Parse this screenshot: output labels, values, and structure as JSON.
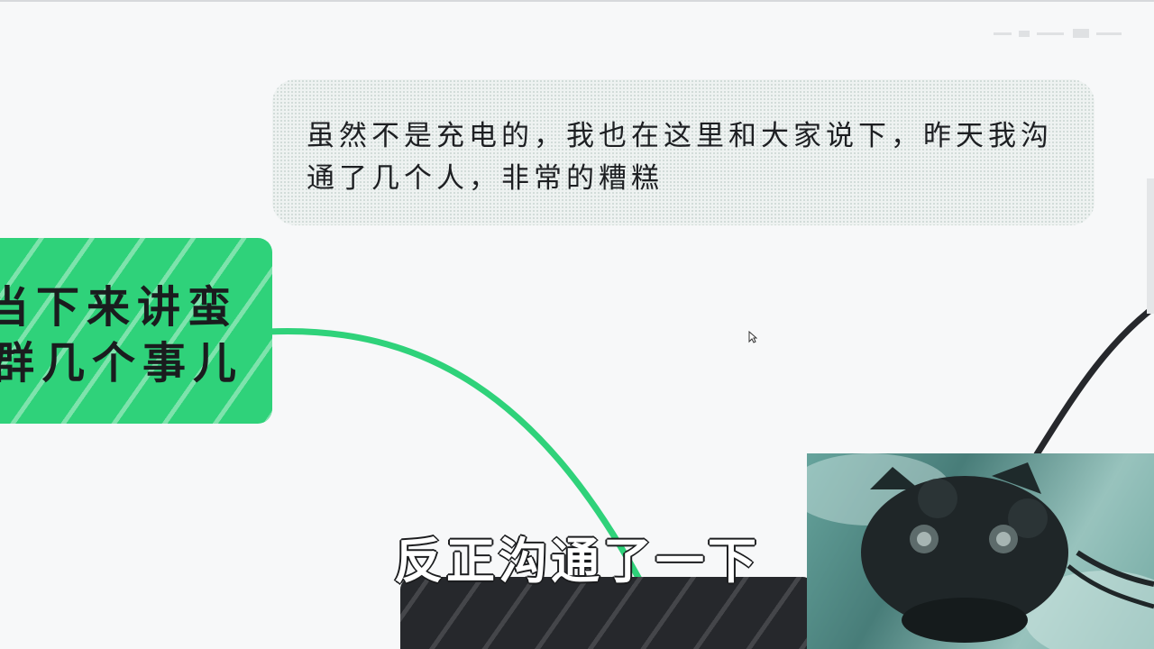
{
  "note": {
    "line_1": "虽然不是充电的，我也在这里和大家说下，昨天我沟",
    "line_2": "通了几个人，非常的糟糕"
  },
  "topic": {
    "line_1": "当下来讲蛮",
    "line_2": "群几个事儿"
  },
  "subtitle": "反正沟通了一下",
  "colors": {
    "accent_green": "#2fd27a",
    "dark_node": "#26282c",
    "note_background": "#eef2f1",
    "text": "#1d1f22"
  },
  "icons": {
    "cursor": "mouse-cursor-icon"
  }
}
